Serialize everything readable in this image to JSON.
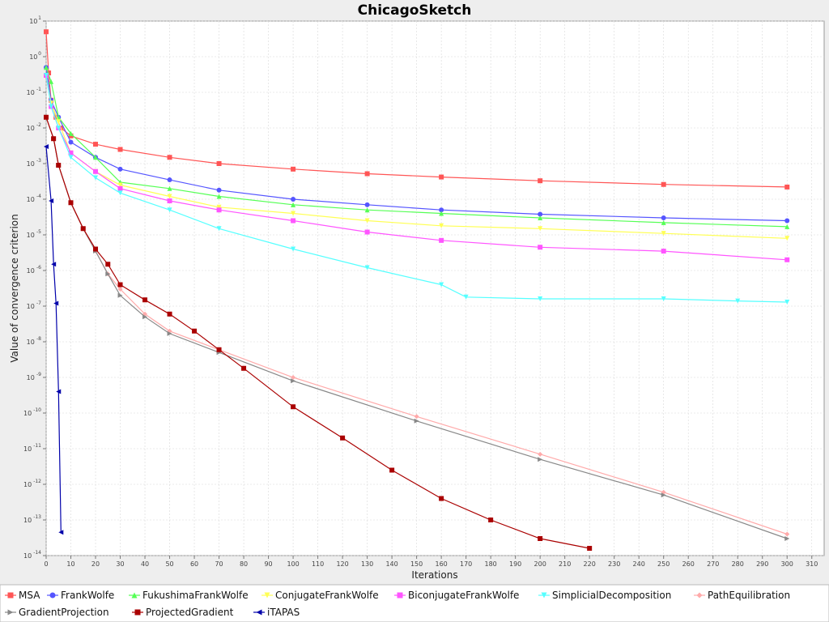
{
  "chart_data": {
    "type": "line",
    "title": "ChicagoSketch",
    "xlabel": "Iterations",
    "ylabel": "Value of convergence criterion",
    "xlim": [
      0,
      315
    ],
    "ylim_log10": [
      -14,
      1
    ],
    "y_scale": "log",
    "grid": true,
    "legend_position": "bottom",
    "x_ticks": [
      "0",
      "10",
      "20",
      "30",
      "40",
      "50",
      "60",
      "70",
      "80",
      "90",
      "100",
      "110",
      "120",
      "130",
      "140",
      "150",
      "160",
      "170",
      "180",
      "190",
      "200",
      "210",
      "220",
      "230",
      "240",
      "250",
      "260",
      "270",
      "280",
      "290",
      "300",
      "310"
    ],
    "y_tick_exponents": [
      "1",
      "0",
      "-1",
      "-2",
      "-3",
      "-4",
      "-5",
      "-6",
      "-7",
      "-8",
      "-9",
      "-10",
      "-11",
      "-12",
      "-13",
      "-14"
    ],
    "series": [
      {
        "name": "MSA",
        "color": "#ff5555",
        "marker": "square",
        "points": [
          [
            0,
            5
          ],
          [
            1,
            0.35
          ],
          [
            2,
            0.06
          ],
          [
            4,
            0.02
          ],
          [
            6,
            0.01
          ],
          [
            10,
            0.006
          ],
          [
            20,
            0.0035
          ],
          [
            30,
            0.0025
          ],
          [
            50,
            0.0015
          ],
          [
            70,
            0.001
          ],
          [
            100,
            0.0007
          ],
          [
            130,
            0.00052
          ],
          [
            160,
            0.00042
          ],
          [
            200,
            0.00033
          ],
          [
            250,
            0.00026
          ],
          [
            300,
            0.00022
          ]
        ]
      },
      {
        "name": "FrankWolfe",
        "color": "#5555ff",
        "marker": "circle",
        "points": [
          [
            0,
            0.5
          ],
          [
            2,
            0.06
          ],
          [
            5,
            0.02
          ],
          [
            10,
            0.004
          ],
          [
            20,
            0.0015
          ],
          [
            30,
            0.0007
          ],
          [
            50,
            0.00035
          ],
          [
            70,
            0.00018
          ],
          [
            100,
            0.0001
          ],
          [
            130,
            7e-05
          ],
          [
            160,
            5e-05
          ],
          [
            200,
            3.8e-05
          ],
          [
            250,
            3e-05
          ],
          [
            300,
            2.5e-05
          ]
        ]
      },
      {
        "name": "FukushimaFrankWolfe",
        "color": "#55ff55",
        "marker": "triangle-up",
        "points": [
          [
            0,
            0.5
          ],
          [
            2,
            0.2
          ],
          [
            5,
            0.02
          ],
          [
            10,
            0.007
          ],
          [
            20,
            0.0015
          ],
          [
            30,
            0.0003
          ],
          [
            50,
            0.0002
          ],
          [
            70,
            0.00012
          ],
          [
            100,
            7e-05
          ],
          [
            130,
            5e-05
          ],
          [
            160,
            4e-05
          ],
          [
            200,
            3e-05
          ],
          [
            250,
            2.2e-05
          ],
          [
            300,
            1.7e-05
          ]
        ]
      },
      {
        "name": "ConjugateFrankWolfe",
        "color": "#ffff55",
        "marker": "triangle-down",
        "points": [
          [
            0,
            0.3
          ],
          [
            2,
            0.05
          ],
          [
            5,
            0.015
          ],
          [
            10,
            0.002
          ],
          [
            20,
            0.0006
          ],
          [
            30,
            0.00025
          ],
          [
            50,
            0.00012
          ],
          [
            70,
            6e-05
          ],
          [
            100,
            4e-05
          ],
          [
            130,
            2.5e-05
          ],
          [
            160,
            1.8e-05
          ],
          [
            200,
            1.5e-05
          ],
          [
            250,
            1.1e-05
          ],
          [
            300,
            8e-06
          ]
        ]
      },
      {
        "name": "BiconjugateFrankWolfe",
        "color": "#ff55ff",
        "marker": "square",
        "points": [
          [
            0,
            0.3
          ],
          [
            2,
            0.04
          ],
          [
            5,
            0.01
          ],
          [
            10,
            0.002
          ],
          [
            20,
            0.0006
          ],
          [
            30,
            0.0002
          ],
          [
            50,
            9e-05
          ],
          [
            70,
            5e-05
          ],
          [
            100,
            2.5e-05
          ],
          [
            130,
            1.2e-05
          ],
          [
            160,
            7e-06
          ],
          [
            200,
            4.5e-06
          ],
          [
            250,
            3.5e-06
          ],
          [
            300,
            2e-06
          ]
        ]
      },
      {
        "name": "SimplicialDecomposition",
        "color": "#55ffff",
        "marker": "triangle-down",
        "points": [
          [
            0,
            0.3
          ],
          [
            2,
            0.04
          ],
          [
            5,
            0.01
          ],
          [
            10,
            0.0015
          ],
          [
            20,
            0.0004
          ],
          [
            30,
            0.00015
          ],
          [
            50,
            5e-05
          ],
          [
            70,
            1.5e-05
          ],
          [
            100,
            4e-06
          ],
          [
            130,
            1.2e-06
          ],
          [
            160,
            4e-07
          ],
          [
            170,
            1.8e-07
          ],
          [
            200,
            1.6e-07
          ],
          [
            250,
            1.6e-07
          ],
          [
            280,
            1.4e-07
          ],
          [
            300,
            1.3e-07
          ]
        ]
      },
      {
        "name": "PathEquilibration",
        "color": "#ffaaaa",
        "marker": "diamond",
        "points": [
          [
            0,
            0.02
          ],
          [
            3,
            0.005
          ],
          [
            5,
            0.0009
          ],
          [
            10,
            8e-05
          ],
          [
            15,
            1.5e-05
          ],
          [
            20,
            3.5e-06
          ],
          [
            25,
            8e-07
          ],
          [
            30,
            3e-07
          ],
          [
            40,
            6e-08
          ],
          [
            50,
            2e-08
          ],
          [
            70,
            6e-09
          ],
          [
            100,
            1e-09
          ],
          [
            150,
            8e-11
          ],
          [
            200,
            7e-12
          ],
          [
            250,
            6e-13
          ],
          [
            300,
            4e-14
          ]
        ]
      },
      {
        "name": "GradientProjection",
        "color": "#888888",
        "marker": "triangle-right",
        "points": [
          [
            0,
            0.02
          ],
          [
            3,
            0.005
          ],
          [
            5,
            0.0009
          ],
          [
            10,
            8e-05
          ],
          [
            15,
            1.5e-05
          ],
          [
            20,
            3.5e-06
          ],
          [
            25,
            8e-07
          ],
          [
            30,
            2e-07
          ],
          [
            40,
            5e-08
          ],
          [
            50,
            1.7e-08
          ],
          [
            70,
            5e-09
          ],
          [
            100,
            8e-10
          ],
          [
            150,
            6e-11
          ],
          [
            200,
            5e-12
          ],
          [
            250,
            5e-13
          ],
          [
            300,
            3e-14
          ]
        ]
      },
      {
        "name": "ProjectedGradient",
        "color": "#aa0000",
        "marker": "square",
        "points": [
          [
            0,
            0.02
          ],
          [
            3,
            0.005
          ],
          [
            5,
            0.0009
          ],
          [
            10,
            8e-05
          ],
          [
            15,
            1.5e-05
          ],
          [
            20,
            4e-06
          ],
          [
            25,
            1.5e-06
          ],
          [
            30,
            4e-07
          ],
          [
            40,
            1.5e-07
          ],
          [
            50,
            6e-08
          ],
          [
            60,
            2e-08
          ],
          [
            70,
            6e-09
          ],
          [
            80,
            1.8e-09
          ],
          [
            100,
            1.5e-10
          ],
          [
            120,
            2e-11
          ],
          [
            140,
            2.5e-12
          ],
          [
            160,
            4e-13
          ],
          [
            180,
            1e-13
          ],
          [
            200,
            3e-14
          ],
          [
            220,
            1.6e-14
          ]
        ]
      },
      {
        "name": "iTAPAS",
        "color": "#0000aa",
        "marker": "triangle-left",
        "points": [
          [
            0,
            0.003
          ],
          [
            2,
            9e-05
          ],
          [
            3,
            1.5e-06
          ],
          [
            4,
            1.2e-07
          ],
          [
            5,
            4e-10
          ],
          [
            6,
            4.5e-14
          ]
        ]
      }
    ]
  }
}
